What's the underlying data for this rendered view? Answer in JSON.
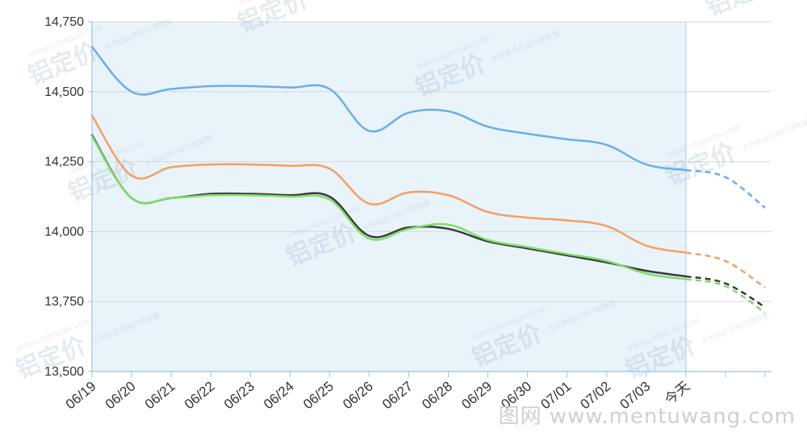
{
  "chart_data": {
    "type": "line",
    "categories": [
      "06/19",
      "06/20",
      "06/21",
      "06/22",
      "06/23",
      "06/24",
      "06/25",
      "06/26",
      "06/27",
      "06/28",
      "06/29",
      "06/30",
      "07/01",
      "07/02",
      "07/03",
      "今天",
      "",
      ""
    ],
    "ylim": [
      13500,
      14750
    ],
    "yticks": [
      "14,750",
      "14,500",
      "14,250",
      "14,000",
      "13,750",
      "13,500"
    ],
    "ytick_values": [
      14750,
      14500,
      14250,
      14000,
      13750,
      13500
    ],
    "grid": true,
    "history_end_index": 15,
    "series": [
      {
        "color": "#6aaee8",
        "values": [
          14660,
          14500,
          14510,
          14520,
          14520,
          14515,
          14510,
          14360,
          14425,
          14430,
          14375,
          14350,
          14330,
          14310,
          14240,
          14220,
          14195,
          14085
        ]
      },
      {
        "color": "#f4a060",
        "values": [
          14415,
          14200,
          14230,
          14240,
          14240,
          14235,
          14225,
          14100,
          14140,
          14130,
          14070,
          14050,
          14040,
          14020,
          13950,
          13925,
          13895,
          13800
        ]
      },
      {
        "color": "#3a3a3a",
        "values": [
          14345,
          14120,
          14120,
          14135,
          14135,
          14130,
          14125,
          13985,
          14015,
          14010,
          13965,
          13940,
          13915,
          13890,
          13860,
          13840,
          13815,
          13730
        ]
      },
      {
        "color": "#7fde6a",
        "values": [
          14340,
          14120,
          14120,
          14130,
          14130,
          14125,
          14115,
          13975,
          14010,
          14025,
          13970,
          13945,
          13920,
          13895,
          13850,
          13830,
          13805,
          13710
        ]
      }
    ]
  },
  "watermark": {
    "brand": "铝定价",
    "url": "WWW.LVDINGJIA.COM",
    "tagline": "大宗商品交易行情数据",
    "site": "图网 www.mentuwang.com"
  },
  "colors": {
    "history_shade": "#e9f3fa",
    "axis": "#9cc3e0",
    "grid": "#d9d9d9",
    "divider": "#bcd9ee"
  }
}
